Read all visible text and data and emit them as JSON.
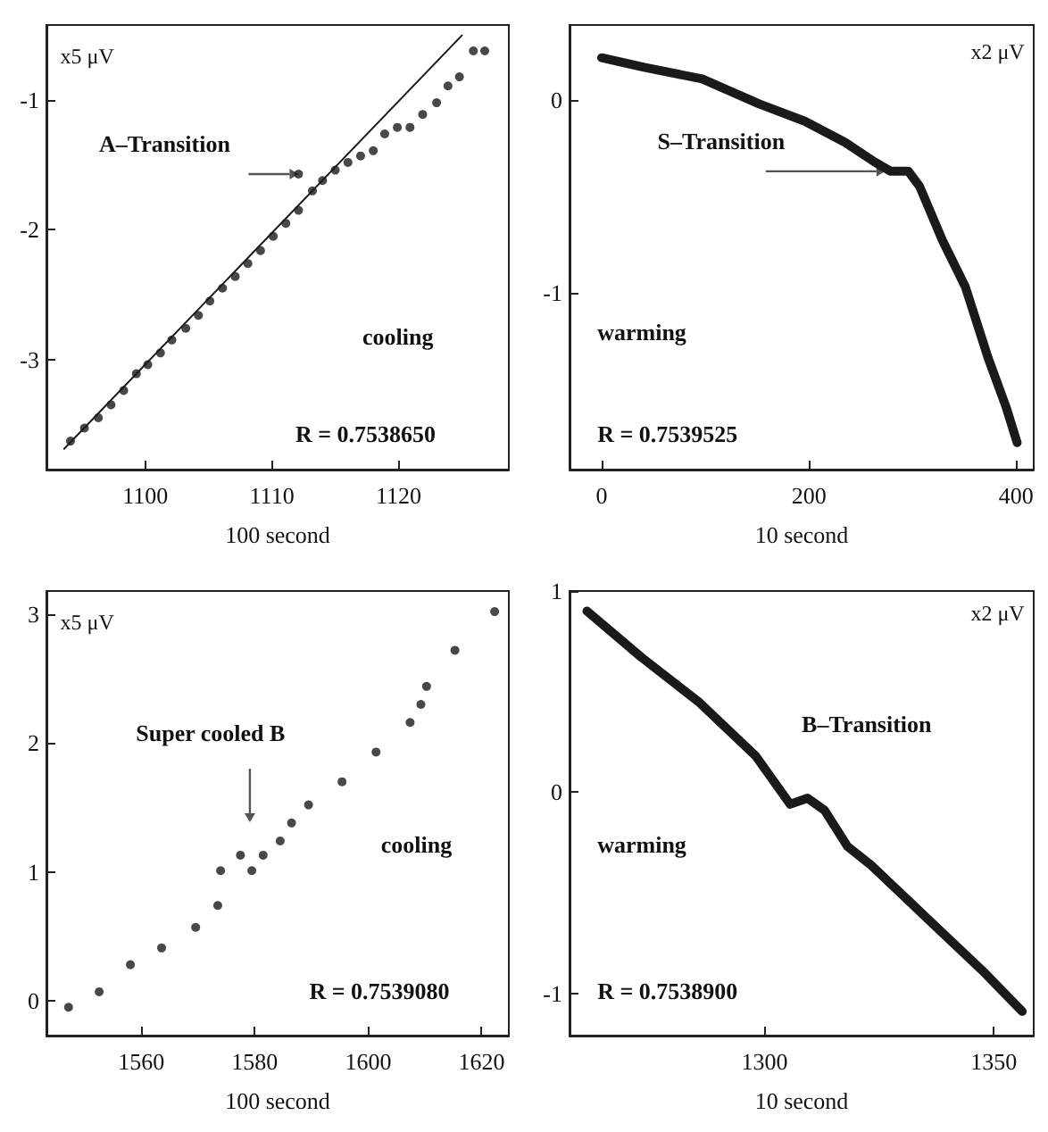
{
  "chart_data": [
    {
      "type": "scatter",
      "xlabel": "100 second",
      "ylabel": "x5 μV",
      "xlim": [
        1092.2,
        1128.7
      ],
      "xticks": [
        1100,
        1110,
        1120
      ],
      "ylim": [
        -3.85,
        -0.42
      ],
      "yticks": [
        -3,
        -2,
        -1
      ],
      "grid": false,
      "marker": "circle",
      "annotations": [
        {
          "text": "A–Transition",
          "x": 1112.1,
          "y": -1.57
        },
        "cooling",
        "R = 0.7538650"
      ],
      "series": [
        {
          "color": "#1a1a1a",
          "x": [
            1094.1,
            1095.2,
            1096.3,
            1097.3,
            1098.3,
            1099.3,
            1100.2,
            1101.2,
            1102.1,
            1103.2,
            1104.2,
            1105.1,
            1106.1,
            1107.1,
            1108.1,
            1109.1,
            1110.1,
            1111.1,
            1112.1,
            1112.1,
            1113.2,
            1114.0,
            1115.0,
            1116.0,
            1117.0,
            1118.0,
            1118.9,
            1119.9,
            1120.9,
            1121.9,
            1123.0,
            1123.9,
            1124.8,
            1125.9,
            1126.8
          ],
          "values": [
            -3.63,
            -3.53,
            -3.45,
            -3.35,
            -3.24,
            -3.11,
            -3.04,
            -2.95,
            -2.85,
            -2.76,
            -2.66,
            -2.55,
            -2.45,
            -2.36,
            -2.26,
            -2.16,
            -2.05,
            -1.95,
            -1.85,
            -1.57,
            -1.7,
            -1.62,
            -1.54,
            -1.48,
            -1.43,
            -1.39,
            -1.26,
            -1.21,
            -1.21,
            -1.11,
            -1.02,
            -0.89,
            -0.82,
            -0.62,
            -0.62
          ]
        },
        {
          "type": "line",
          "marker": "none",
          "color": "#1a1a1a",
          "x": [
            1093.6,
            1125.0
          ],
          "values": [
            -3.69,
            -0.5
          ]
        }
      ]
    },
    {
      "type": "line",
      "xlabel": "10 second",
      "ylabel": "x2 μV",
      "xlim": [
        -31,
        417
      ],
      "xticks": [
        0,
        200,
        400
      ],
      "ylim": [
        -1.92,
        0.39
      ],
      "yticks": [
        -1,
        0
      ],
      "grid": false,
      "annotations": [
        {
          "text": "S–Transition",
          "x": 279,
          "y": -0.37
        },
        "warming",
        "R = 0.7539525"
      ],
      "series": [
        {
          "color": "#1a1a1a",
          "x": [
            0,
            41,
            97,
            152,
            196,
            235,
            263,
            279,
            296,
            307,
            329,
            351,
            373,
            390,
            401
          ],
          "values": [
            0.22,
            0.17,
            0.11,
            -0.02,
            -0.11,
            -0.22,
            -0.32,
            -0.37,
            -0.37,
            -0.45,
            -0.73,
            -0.97,
            -1.34,
            -1.59,
            -1.78
          ]
        }
      ]
    },
    {
      "type": "scatter",
      "xlabel": "100 second",
      "ylabel": "x5 μV",
      "xlim": [
        1543.3,
        1624.8
      ],
      "xticks": [
        1560,
        1580,
        1600,
        1620
      ],
      "ylim": [
        -0.27,
        3.18
      ],
      "yticks": [
        0,
        1,
        2,
        3
      ],
      "grid": false,
      "marker": "circle",
      "annotations": [
        "Super cooled B",
        "cooling",
        "R = 0.7539080"
      ],
      "series": [
        {
          "color": "#1a1a1a",
          "x": [
            1547.2,
            1552.6,
            1558.1,
            1563.6,
            1569.6,
            1573.5,
            1574.0,
            1577.5,
            1579.5,
            1581.5,
            1584.5,
            1586.5,
            1589.5,
            1595.4,
            1601.4,
            1607.4,
            1609.3,
            1610.3,
            1615.3,
            1622.3
          ],
          "values": [
            -0.05,
            0.07,
            0.28,
            0.41,
            0.57,
            0.74,
            1.01,
            1.13,
            1.01,
            1.13,
            1.24,
            1.38,
            1.52,
            1.7,
            1.93,
            2.16,
            2.3,
            2.44,
            2.72,
            3.02
          ]
        }
      ]
    },
    {
      "type": "line",
      "xlabel": "10 second",
      "ylabel": "x2 μV",
      "xlim": [
        1257.5,
        1358.7
      ],
      "xticks": [
        1300,
        1350
      ],
      "ylim": [
        -1.21,
        1
      ],
      "yticks": [
        -1,
        0,
        1
      ],
      "grid": false,
      "annotations": [
        "B–Transition",
        "warming",
        "R = 0.7538900"
      ],
      "series": [
        {
          "color": "#1a1a1a",
          "x": [
            1261.3,
            1273.2,
            1285.6,
            1298.1,
            1305.6,
            1309.4,
            1313.1,
            1318.1,
            1323.1,
            1335.6,
            1348.1,
            1356.2
          ],
          "values": [
            0.9,
            0.67,
            0.45,
            0.18,
            -0.06,
            -0.03,
            -0.09,
            -0.27,
            -0.36,
            -0.63,
            -0.9,
            -1.09
          ]
        }
      ]
    }
  ]
}
